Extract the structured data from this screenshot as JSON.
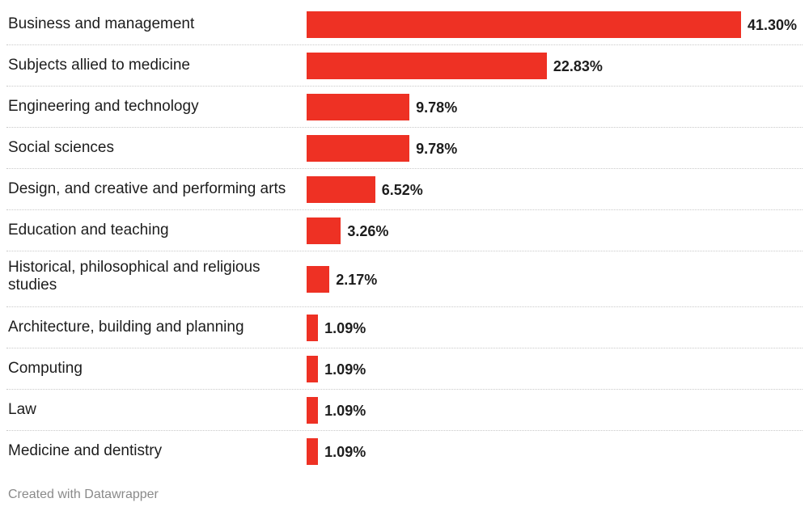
{
  "chart_data": {
    "type": "bar",
    "orientation": "horizontal",
    "categories": [
      "Business and management",
      "Subjects allied to medicine",
      "Engineering and technology",
      "Social sciences",
      "Design, and creative and performing arts",
      "Education and teaching",
      "Historical, philosophical and religious studies",
      "Architecture, building and planning",
      "Computing",
      "Law",
      "Medicine and dentistry"
    ],
    "values": [
      41.3,
      22.83,
      9.78,
      9.78,
      6.52,
      3.26,
      2.17,
      1.09,
      1.09,
      1.09,
      1.09
    ],
    "value_labels": [
      "41.30%",
      "22.83%",
      "9.78%",
      "9.78%",
      "6.52%",
      "3.26%",
      "2.17%",
      "1.09%",
      "1.09%",
      "1.09%",
      "1.09%"
    ],
    "bar_color": "#ee3124",
    "xlim": [
      0,
      41.3
    ]
  },
  "footer": {
    "credit": "Created with Datawrapper"
  }
}
